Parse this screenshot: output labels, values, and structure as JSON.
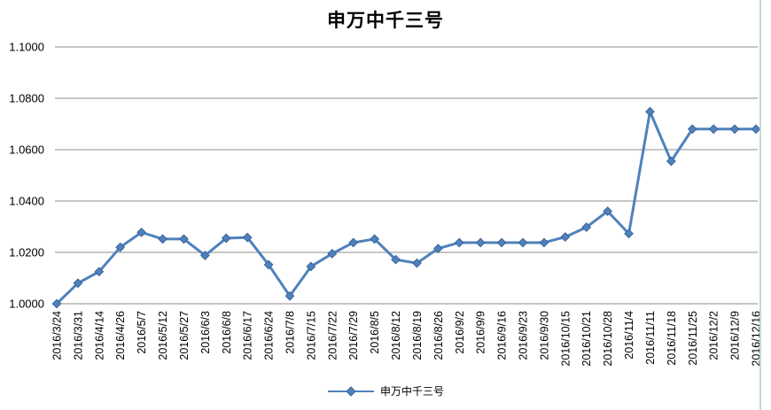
{
  "chart_data": {
    "type": "line",
    "title": "申万中千三号",
    "categories": [
      "2016/3/24",
      "2016/3/31",
      "2016/4/14",
      "2016/4/26",
      "2016/5/7",
      "2016/5/12",
      "2016/5/27",
      "2016/6/3",
      "2016/6/8",
      "2016/6/17",
      "2016/6/24",
      "2016/7/8",
      "2016/7/15",
      "2016/7/22",
      "2016/7/29",
      "2016/8/5",
      "2016/8/12",
      "2016/8/19",
      "2016/8/26",
      "2016/9/2",
      "2016/9/9",
      "2016/9/16",
      "2016/9/23",
      "2016/9/30",
      "2016/10/15",
      "2016/10/21",
      "2016/10/28",
      "2016/11/4",
      "2016/11/11",
      "2016/11/18",
      "2016/11/25",
      "2016/12/2",
      "2016/12/9",
      "2016/12/16"
    ],
    "series": [
      {
        "name": "申万中千三号",
        "color": "#4F81BD",
        "marker": "diamond",
        "marker_border_color": "#3C6498",
        "values": [
          1.0,
          1.008,
          1.0125,
          1.022,
          1.0278,
          1.0252,
          1.0252,
          1.0188,
          1.0255,
          1.0258,
          1.0152,
          1.003,
          1.0145,
          1.0195,
          1.0238,
          1.0252,
          1.0172,
          1.0158,
          1.0215,
          1.0238,
          1.0238,
          1.0238,
          1.0238,
          1.0238,
          1.026,
          1.0298,
          1.036,
          1.0273,
          1.0748,
          1.0555,
          1.068,
          1.068,
          1.068,
          1.068
        ]
      }
    ],
    "ylim": [
      1.0,
      1.1
    ],
    "ytick_labels": [
      "1.0000",
      "1.0200",
      "1.0400",
      "1.0600",
      "1.0800",
      "1.1000"
    ],
    "grid": true,
    "legend_position": "bottom",
    "gridline_color": "#8C8C8C",
    "tick_label_color": "#000000",
    "title_color": "#000000"
  }
}
